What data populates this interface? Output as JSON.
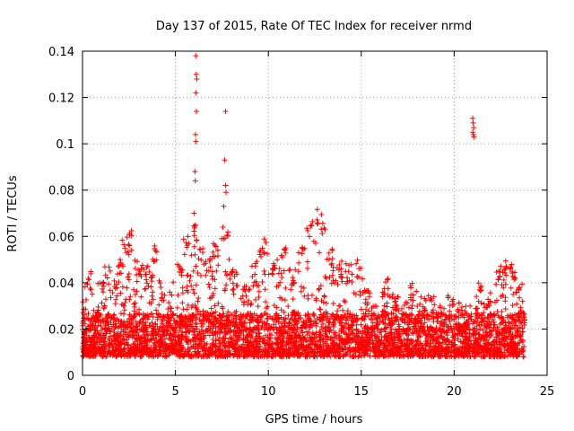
{
  "chart_data": {
    "type": "scatter",
    "title": "Day 137 of 2015, Rate Of TEC Index for receiver nrmd",
    "xlabel": "GPS time / hours",
    "ylabel": "ROTI / TECUs",
    "xlim": [
      0,
      25
    ],
    "ylim": [
      0,
      0.14
    ],
    "x_ticks": [
      0,
      5,
      10,
      15,
      20,
      25
    ],
    "x_tick_labels": [
      "0",
      "5",
      "10",
      "15",
      "20",
      "25"
    ],
    "y_ticks": [
      0,
      0.02,
      0.04,
      0.06,
      0.08,
      0.1,
      0.12,
      0.14
    ],
    "y_tick_labels": [
      "0",
      "0.02",
      "0.04",
      "0.06",
      "0.08",
      "0.1",
      "0.12",
      "0.14"
    ],
    "grid": true,
    "marker": "+",
    "color": "#ff0000",
    "baseline": {
      "x_range": [
        0.0,
        23.8
      ],
      "typical": [
        0.005,
        0.03
      ]
    },
    "envelope": [
      {
        "x": 0.0,
        "y": 0.033
      },
      {
        "x": 0.3,
        "y": 0.045
      },
      {
        "x": 0.7,
        "y": 0.03
      },
      {
        "x": 1.0,
        "y": 0.04
      },
      {
        "x": 1.3,
        "y": 0.047
      },
      {
        "x": 1.7,
        "y": 0.043
      },
      {
        "x": 2.0,
        "y": 0.05
      },
      {
        "x": 2.3,
        "y": 0.06
      },
      {
        "x": 2.6,
        "y": 0.063
      },
      {
        "x": 3.0,
        "y": 0.05
      },
      {
        "x": 3.4,
        "y": 0.047
      },
      {
        "x": 3.9,
        "y": 0.057
      },
      {
        "x": 4.3,
        "y": 0.04
      },
      {
        "x": 4.7,
        "y": 0.036
      },
      {
        "x": 5.2,
        "y": 0.05
      },
      {
        "x": 5.6,
        "y": 0.06
      },
      {
        "x": 6.0,
        "y": 0.065
      },
      {
        "x": 6.4,
        "y": 0.055
      },
      {
        "x": 6.8,
        "y": 0.05
      },
      {
        "x": 7.2,
        "y": 0.058
      },
      {
        "x": 7.7,
        "y": 0.065
      },
      {
        "x": 8.2,
        "y": 0.045
      },
      {
        "x": 8.7,
        "y": 0.038
      },
      {
        "x": 9.2,
        "y": 0.05
      },
      {
        "x": 9.7,
        "y": 0.06
      },
      {
        "x": 10.2,
        "y": 0.05
      },
      {
        "x": 10.8,
        "y": 0.056
      },
      {
        "x": 11.3,
        "y": 0.045
      },
      {
        "x": 11.8,
        "y": 0.055
      },
      {
        "x": 12.2,
        "y": 0.068
      },
      {
        "x": 12.8,
        "y": 0.072
      },
      {
        "x": 13.3,
        "y": 0.055
      },
      {
        "x": 13.8,
        "y": 0.05
      },
      {
        "x": 14.3,
        "y": 0.048
      },
      {
        "x": 14.8,
        "y": 0.05
      },
      {
        "x": 15.3,
        "y": 0.038
      },
      {
        "x": 15.8,
        "y": 0.03
      },
      {
        "x": 16.3,
        "y": 0.042
      },
      {
        "x": 16.8,
        "y": 0.035
      },
      {
        "x": 17.3,
        "y": 0.032
      },
      {
        "x": 17.8,
        "y": 0.04
      },
      {
        "x": 18.3,
        "y": 0.036
      },
      {
        "x": 18.8,
        "y": 0.034
      },
      {
        "x": 19.3,
        "y": 0.03
      },
      {
        "x": 19.8,
        "y": 0.035
      },
      {
        "x": 20.3,
        "y": 0.032
      },
      {
        "x": 20.8,
        "y": 0.03
      },
      {
        "x": 21.3,
        "y": 0.04
      },
      {
        "x": 21.8,
        "y": 0.034
      },
      {
        "x": 22.3,
        "y": 0.045
      },
      {
        "x": 22.7,
        "y": 0.05
      },
      {
        "x": 23.1,
        "y": 0.048
      },
      {
        "x": 23.5,
        "y": 0.04
      },
      {
        "x": 23.8,
        "y": 0.03
      }
    ],
    "outliers": [
      {
        "x": 6.1,
        "y": 0.138
      },
      {
        "x": 6.12,
        "y": 0.13
      },
      {
        "x": 6.15,
        "y": 0.128
      },
      {
        "x": 6.1,
        "y": 0.122
      },
      {
        "x": 6.13,
        "y": 0.114
      },
      {
        "x": 6.08,
        "y": 0.104
      },
      {
        "x": 6.1,
        "y": 0.101
      },
      {
        "x": 6.05,
        "y": 0.088
      },
      {
        "x": 6.07,
        "y": 0.084
      },
      {
        "x": 6.0,
        "y": 0.07
      },
      {
        "x": 7.7,
        "y": 0.114
      },
      {
        "x": 7.65,
        "y": 0.093
      },
      {
        "x": 7.7,
        "y": 0.082
      },
      {
        "x": 7.72,
        "y": 0.079
      },
      {
        "x": 7.6,
        "y": 0.073
      },
      {
        "x": 21.0,
        "y": 0.111
      },
      {
        "x": 21.02,
        "y": 0.109
      },
      {
        "x": 21.05,
        "y": 0.107
      },
      {
        "x": 21.0,
        "y": 0.105
      },
      {
        "x": 21.03,
        "y": 0.104
      },
      {
        "x": 21.06,
        "y": 0.103
      }
    ]
  }
}
